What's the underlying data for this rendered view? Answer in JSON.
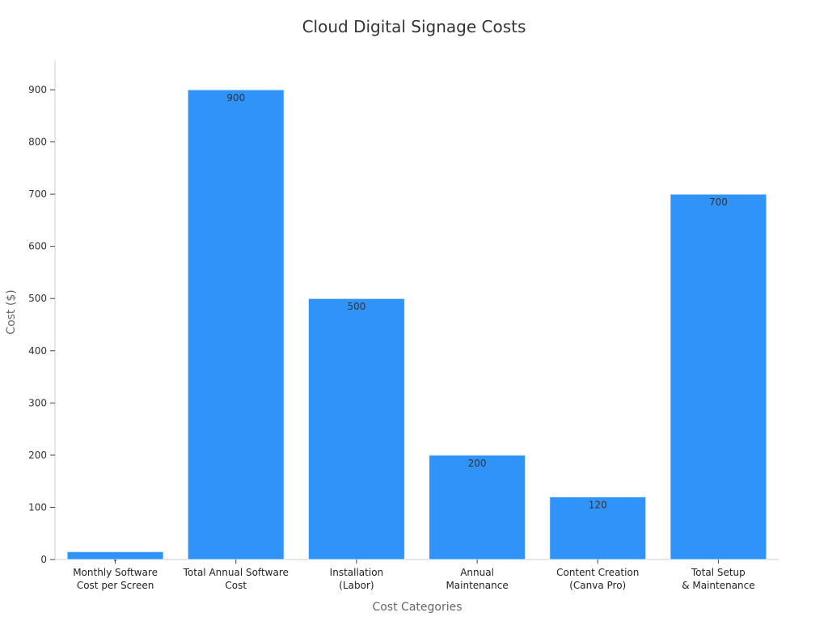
{
  "chart_data": {
    "type": "bar",
    "title": "Cloud Digital Signage Costs",
    "xlabel": "Cost Categories",
    "ylabel": "Cost ($)",
    "categories": [
      [
        "Monthly Software",
        "Cost per Screen"
      ],
      [
        "Total Annual Software",
        "Cost"
      ],
      [
        "Installation",
        "(Labor)"
      ],
      [
        "Annual",
        "Maintenance"
      ],
      [
        "Content Creation",
        "(Canva Pro)"
      ],
      [
        "Total Setup",
        "& Maintenance"
      ]
    ],
    "values": [
      15,
      900,
      500,
      200,
      120,
      700
    ],
    "data_labels": [
      "-",
      "900",
      "500",
      "200",
      "120",
      "700"
    ],
    "ylim": [
      0,
      950
    ],
    "yticks": [
      0,
      100,
      200,
      300,
      400,
      500,
      600,
      700,
      800,
      900
    ],
    "grid": false,
    "legend": "none",
    "colors": {
      "bar": "#3093f8",
      "axis": "#cccccc",
      "tick": "#444444"
    }
  }
}
